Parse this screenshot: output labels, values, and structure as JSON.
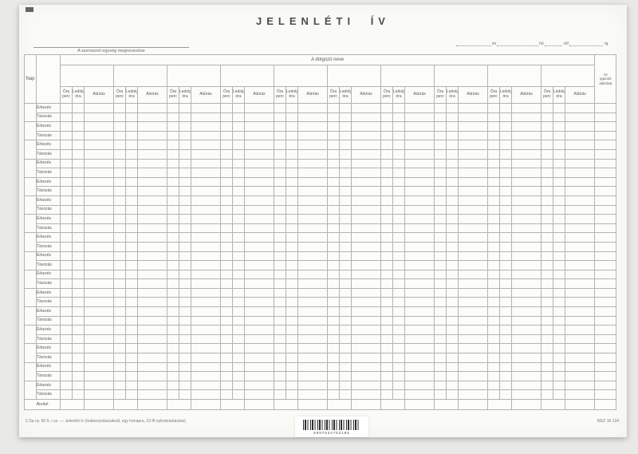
{
  "form": {
    "title": "JELENLÉTI ÍV",
    "unit_label": "A szervezeti egység megnevezése",
    "date_line": {
      "ev": "év",
      "ho": "hó",
      "tol": "-tól",
      "ig": "-ig"
    },
    "table": {
      "nap_header": "Nap",
      "worker_group_header": "A dolgozó neve",
      "sub_headers": [
        [
          "Óra",
          "perc"
        ],
        [
          "Ledolg.",
          "óra"
        ],
        [
          "Aláírás"
        ]
      ],
      "right_header": [
        "Az",
        "igazoló",
        "aláírása"
      ],
      "arrival_label": "Érkezés",
      "departure_label": "Távozás",
      "num_workers": 10,
      "num_day_rows": 16,
      "carry_label": "Átvitel"
    },
    "footer": {
      "left_text": "C.5a ny. 60-5. r.sz. — Jelenléti ív (órabeosztásúaknál, egy hónapra, 10 fő nyilvántartására)",
      "barcode_number": "5997534752188",
      "right_text": "MSZ 16 134"
    }
  }
}
